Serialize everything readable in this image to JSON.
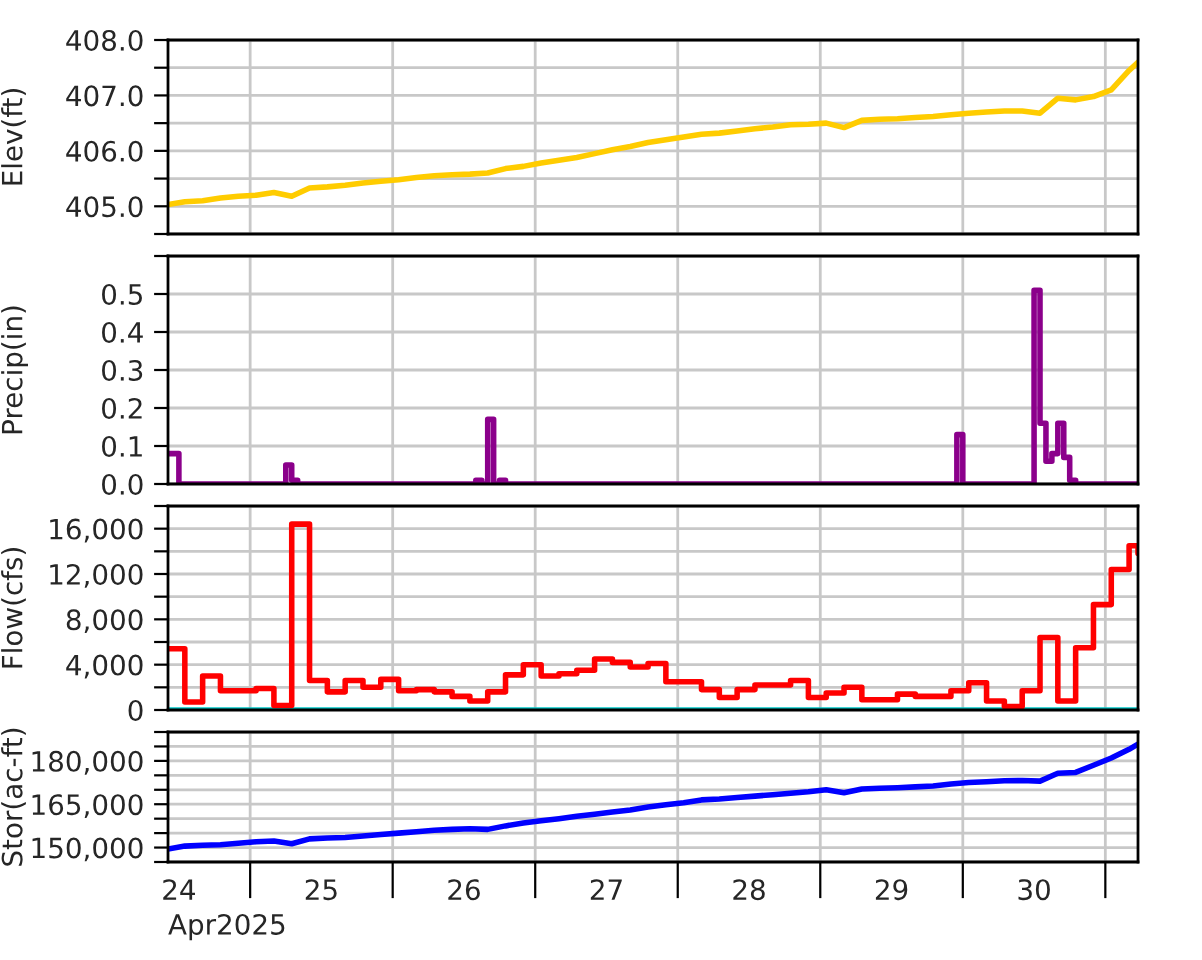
{
  "chart_data": [
    {
      "type": "line",
      "ylabel": "Elev(ft)",
      "tick_labels": "y",
      "grid": true,
      "legend": false,
      "x": [
        "2025-04-24T10:10",
        "2025-04-24T13:00",
        "2025-04-24T16:00",
        "2025-04-24T19:00",
        "2025-04-24T22:00",
        "2025-04-25T01:00",
        "2025-04-25T04:00",
        "2025-04-25T07:00",
        "2025-04-25T10:00",
        "2025-04-25T13:00",
        "2025-04-25T16:00",
        "2025-04-25T19:00",
        "2025-04-25T22:00",
        "2025-04-26T01:00",
        "2025-04-26T04:00",
        "2025-04-26T07:00",
        "2025-04-26T10:00",
        "2025-04-26T13:00",
        "2025-04-26T16:00",
        "2025-04-26T19:00",
        "2025-04-26T22:00",
        "2025-04-27T01:00",
        "2025-04-27T04:00",
        "2025-04-27T07:00",
        "2025-04-27T10:00",
        "2025-04-27T13:00",
        "2025-04-27T16:00",
        "2025-04-27T19:00",
        "2025-04-27T22:00",
        "2025-04-28T01:00",
        "2025-04-28T04:00",
        "2025-04-28T07:00",
        "2025-04-28T10:00",
        "2025-04-28T13:00",
        "2025-04-28T16:00",
        "2025-04-28T19:00",
        "2025-04-28T22:00",
        "2025-04-29T01:00",
        "2025-04-29T04:00",
        "2025-04-29T07:00",
        "2025-04-29T10:00",
        "2025-04-29T13:00",
        "2025-04-29T16:00",
        "2025-04-29T19:00",
        "2025-04-29T22:00",
        "2025-04-30T01:00",
        "2025-04-30T04:00",
        "2025-04-30T07:00",
        "2025-04-30T10:00",
        "2025-04-30T13:00",
        "2025-04-30T16:00",
        "2025-04-30T19:00",
        "2025-04-30T22:00",
        "2025-05-01T01:00",
        "2025-05-01T04:00",
        "2025-05-01T05:30"
      ],
      "series": [
        {
          "color": "#ffcc00",
          "values": [
            405.03,
            405.08,
            405.1,
            405.15,
            405.18,
            405.2,
            405.25,
            405.18,
            405.33,
            405.35,
            405.38,
            405.42,
            405.45,
            405.48,
            405.52,
            405.55,
            405.57,
            405.58,
            405.6,
            405.68,
            405.72,
            405.78,
            405.83,
            405.88,
            405.95,
            406.02,
            406.08,
            406.15,
            406.2,
            406.25,
            406.3,
            406.32,
            406.36,
            406.4,
            406.43,
            406.47,
            406.48,
            406.5,
            406.42,
            406.55,
            406.57,
            406.58,
            406.6,
            406.62,
            406.65,
            406.68,
            406.7,
            406.72,
            406.72,
            406.68,
            406.95,
            406.92,
            406.98,
            407.1,
            407.45,
            407.6
          ]
        }
      ],
      "xlim": [
        "2025-04-24T10:10",
        "2025-05-01T05:30"
      ],
      "xticks": [
        {
          "value": "2025-04-25",
          "label": null
        },
        {
          "value": "2025-04-26",
          "label": null
        },
        {
          "value": "2025-04-27",
          "label": null
        },
        {
          "value": "2025-04-28",
          "label": null
        },
        {
          "value": "2025-04-29",
          "label": null
        },
        {
          "value": "2025-04-30",
          "label": null
        },
        {
          "value": "2025-05-01",
          "label": null
        }
      ],
      "ylim": [
        404.5,
        408
      ],
      "yticks": [
        {
          "value": 404.5,
          "label": null
        },
        {
          "value": 405,
          "label": "405.0"
        },
        {
          "value": 405.5,
          "label": null
        },
        {
          "value": 406,
          "label": "406.0"
        },
        {
          "value": 406.5,
          "label": null
        },
        {
          "value": 407,
          "label": "407.0"
        },
        {
          "value": 407.5,
          "label": null
        },
        {
          "value": 408,
          "label": "408.0"
        }
      ]
    },
    {
      "type": "step",
      "ylabel": "Precip(in)",
      "tick_labels": "y",
      "grid": true,
      "legend": false,
      "series": [
        {
          "color": "#8b008b",
          "x": [
            "2025-04-24T10:10",
            "2025-04-24T12:00",
            "2025-04-25T06:00",
            "2025-04-25T07:00",
            "2025-04-25T08:00",
            "2025-04-26T14:00",
            "2025-04-26T15:00",
            "2025-04-26T16:00",
            "2025-04-26T17:00",
            "2025-04-26T18:00",
            "2025-04-26T19:00",
            "2025-04-29T23:00",
            "2025-04-30T00:00",
            "2025-04-30T12:00",
            "2025-04-30T13:00",
            "2025-04-30T14:00",
            "2025-04-30T15:00",
            "2025-04-30T16:00",
            "2025-04-30T17:00",
            "2025-04-30T18:00",
            "2025-04-30T19:00",
            "2025-05-01T05:30"
          ],
          "values": [
            0.08,
            0,
            0.05,
            0.01,
            0,
            0.01,
            0,
            0.17,
            0,
            0.01,
            0,
            0.13,
            0,
            0.51,
            0.16,
            0.06,
            0.08,
            0.16,
            0.07,
            0.01,
            0,
            0
          ]
        }
      ],
      "xlim": [
        "2025-04-24T10:10",
        "2025-05-01T05:30"
      ],
      "xticks": [
        {
          "value": "2025-04-25",
          "label": null
        },
        {
          "value": "2025-04-26",
          "label": null
        },
        {
          "value": "2025-04-27",
          "label": null
        },
        {
          "value": "2025-04-28",
          "label": null
        },
        {
          "value": "2025-04-29",
          "label": null
        },
        {
          "value": "2025-04-30",
          "label": null
        },
        {
          "value": "2025-05-01",
          "label": null
        }
      ],
      "ylim": [
        0,
        0.6
      ],
      "yticks": [
        {
          "value": 0,
          "label": "0.0"
        },
        0.1,
        0.2,
        0.3,
        0.4,
        0.5,
        {
          "value": 0.6,
          "label": null
        }
      ]
    },
    {
      "type": "step",
      "ylabel": "Flow(cfs)",
      "tick_labels": "y",
      "grid": true,
      "legend": false,
      "x": [
        "2025-04-24T10:10",
        "2025-04-24T13:00",
        "2025-04-24T16:00",
        "2025-04-24T19:00",
        "2025-04-24T22:00",
        "2025-04-25T01:00",
        "2025-04-25T04:00",
        "2025-04-25T07:00",
        "2025-04-25T10:00",
        "2025-04-25T13:00",
        "2025-04-25T16:00",
        "2025-04-25T19:00",
        "2025-04-25T22:00",
        "2025-04-26T01:00",
        "2025-04-26T04:00",
        "2025-04-26T07:00",
        "2025-04-26T10:00",
        "2025-04-26T13:00",
        "2025-04-26T16:00",
        "2025-04-26T19:00",
        "2025-04-26T22:00",
        "2025-04-27T01:00",
        "2025-04-27T04:00",
        "2025-04-27T07:00",
        "2025-04-27T10:00",
        "2025-04-27T13:00",
        "2025-04-27T16:00",
        "2025-04-27T19:00",
        "2025-04-27T22:00",
        "2025-04-28T01:00",
        "2025-04-28T04:00",
        "2025-04-28T07:00",
        "2025-04-28T10:00",
        "2025-04-28T13:00",
        "2025-04-28T16:00",
        "2025-04-28T19:00",
        "2025-04-28T22:00",
        "2025-04-29T01:00",
        "2025-04-29T04:00",
        "2025-04-29T07:00",
        "2025-04-29T10:00",
        "2025-04-29T13:00",
        "2025-04-29T16:00",
        "2025-04-29T19:00",
        "2025-04-29T22:00",
        "2025-04-30T01:00",
        "2025-04-30T04:00",
        "2025-04-30T07:00",
        "2025-04-30T10:00",
        "2025-04-30T13:00",
        "2025-04-30T16:00",
        "2025-04-30T19:00",
        "2025-04-30T22:00",
        "2025-05-01T01:00",
        "2025-05-01T04:00",
        "2025-05-01T05:30"
      ],
      "series": [
        {
          "color": "#00c8c8",
          "x": [
            "2025-04-24T10:10",
            "2025-05-01T05:30"
          ],
          "values": [
            0,
            0
          ]
        },
        {
          "color": "#ff0000",
          "values": [
            5400,
            700,
            3000,
            1700,
            1700,
            1900,
            400,
            16400,
            2600,
            1600,
            2600,
            2000,
            2700,
            1700,
            1800,
            1600,
            1200,
            800,
            1600,
            3100,
            4000,
            3000,
            3200,
            3500,
            4500,
            4200,
            3800,
            4100,
            2500,
            2500,
            1800,
            1100,
            1800,
            2200,
            2200,
            2600,
            1100,
            1500,
            2000,
            900,
            900,
            1400,
            1200,
            1200,
            1700,
            2400,
            800,
            300,
            1700,
            6400,
            800,
            5500,
            9300,
            12400,
            14500,
            13800
          ]
        }
      ],
      "xlim": [
        "2025-04-24T10:10",
        "2025-05-01T05:30"
      ],
      "xticks": [
        {
          "value": "2025-04-25",
          "label": null
        },
        {
          "value": "2025-04-26",
          "label": null
        },
        {
          "value": "2025-04-27",
          "label": null
        },
        {
          "value": "2025-04-28",
          "label": null
        },
        {
          "value": "2025-04-29",
          "label": null
        },
        {
          "value": "2025-04-30",
          "label": null
        },
        {
          "value": "2025-05-01",
          "label": null
        }
      ],
      "ylim": [
        0,
        18000
      ],
      "yticks": [
        0,
        {
          "value": 2000,
          "label": null
        },
        {
          "value": 4000,
          "label": "4,000"
        },
        {
          "value": 6000,
          "label": null
        },
        {
          "value": 8000,
          "label": "8,000"
        },
        {
          "value": 10000,
          "label": null
        },
        {
          "value": 12000,
          "label": "12,000"
        },
        {
          "value": 14000,
          "label": null
        },
        {
          "value": 16000,
          "label": "16,000"
        },
        {
          "value": 18000,
          "label": null
        }
      ]
    },
    {
      "type": "line",
      "ylabel": "Stor(ac-ft)",
      "xlabel": "Apr2025",
      "grid": true,
      "legend": false,
      "x": [
        "2025-04-24T10:10",
        "2025-04-24T13:00",
        "2025-04-24T16:00",
        "2025-04-24T19:00",
        "2025-04-24T22:00",
        "2025-04-25T01:00",
        "2025-04-25T04:00",
        "2025-04-25T07:00",
        "2025-04-25T10:00",
        "2025-04-25T13:00",
        "2025-04-25T16:00",
        "2025-04-25T19:00",
        "2025-04-25T22:00",
        "2025-04-26T01:00",
        "2025-04-26T04:00",
        "2025-04-26T07:00",
        "2025-04-26T10:00",
        "2025-04-26T13:00",
        "2025-04-26T16:00",
        "2025-04-26T19:00",
        "2025-04-26T22:00",
        "2025-04-27T01:00",
        "2025-04-27T04:00",
        "2025-04-27T07:00",
        "2025-04-27T10:00",
        "2025-04-27T13:00",
        "2025-04-27T16:00",
        "2025-04-27T19:00",
        "2025-04-27T22:00",
        "2025-04-28T01:00",
        "2025-04-28T04:00",
        "2025-04-28T07:00",
        "2025-04-28T10:00",
        "2025-04-28T13:00",
        "2025-04-28T16:00",
        "2025-04-28T19:00",
        "2025-04-28T22:00",
        "2025-04-29T01:00",
        "2025-04-29T04:00",
        "2025-04-29T07:00",
        "2025-04-29T10:00",
        "2025-04-29T13:00",
        "2025-04-29T16:00",
        "2025-04-29T19:00",
        "2025-04-29T22:00",
        "2025-04-30T01:00",
        "2025-04-30T04:00",
        "2025-04-30T07:00",
        "2025-04-30T10:00",
        "2025-04-30T13:00",
        "2025-04-30T16:00",
        "2025-04-30T19:00",
        "2025-04-30T22:00",
        "2025-05-01T01:00",
        "2025-05-01T04:00",
        "2025-05-01T05:30"
      ],
      "series": [
        {
          "color": "#0000ff",
          "values": [
            149500,
            150500,
            150800,
            151000,
            151500,
            152000,
            152300,
            151300,
            153000,
            153300,
            153500,
            154000,
            154500,
            155000,
            155500,
            156000,
            156300,
            156500,
            156300,
            157500,
            158500,
            159300,
            160000,
            160800,
            161500,
            162300,
            163000,
            164000,
            164800,
            165500,
            166500,
            166800,
            167300,
            167800,
            168300,
            168800,
            169300,
            170000,
            169000,
            170300,
            170500,
            170700,
            171000,
            171300,
            172000,
            172500,
            172800,
            173100,
            173200,
            173000,
            175700,
            176000,
            178500,
            181000,
            184000,
            185800
          ]
        }
      ],
      "xlim": [
        "2025-04-24T10:10",
        "2025-05-01T05:30"
      ],
      "xticks": [
        {
          "value": "2025-04-24T12:00",
          "label": "24"
        },
        {
          "value": "2025-04-25",
          "label": null
        },
        {
          "value": "2025-04-25T12:00",
          "label": "25"
        },
        {
          "value": "2025-04-26",
          "label": null
        },
        {
          "value": "2025-04-26T12:00",
          "label": "26"
        },
        {
          "value": "2025-04-27",
          "label": null
        },
        {
          "value": "2025-04-27T12:00",
          "label": "27"
        },
        {
          "value": "2025-04-28",
          "label": null
        },
        {
          "value": "2025-04-28T12:00",
          "label": "28"
        },
        {
          "value": "2025-04-29",
          "label": null
        },
        {
          "value": "2025-04-29T12:00",
          "label": "29"
        },
        {
          "value": "2025-04-30",
          "label": null
        },
        {
          "value": "2025-04-30T12:00",
          "label": "30"
        },
        {
          "value": "2025-05-01",
          "label": null
        }
      ],
      "ylim": [
        145000,
        190000
      ],
      "yticks": [
        {
          "value": 145000,
          "label": null
        },
        {
          "value": 150000,
          "label": "150,000"
        },
        {
          "value": 155000,
          "label": null
        },
        {
          "value": 160000,
          "label": null
        },
        {
          "value": 165000,
          "label": "165,000"
        },
        {
          "value": 170000,
          "label": null
        },
        {
          "value": 175000,
          "label": null
        },
        {
          "value": 180000,
          "label": "180,000"
        },
        {
          "value": 185000,
          "label": null
        },
        {
          "value": 190000,
          "label": null
        }
      ]
    }
  ]
}
